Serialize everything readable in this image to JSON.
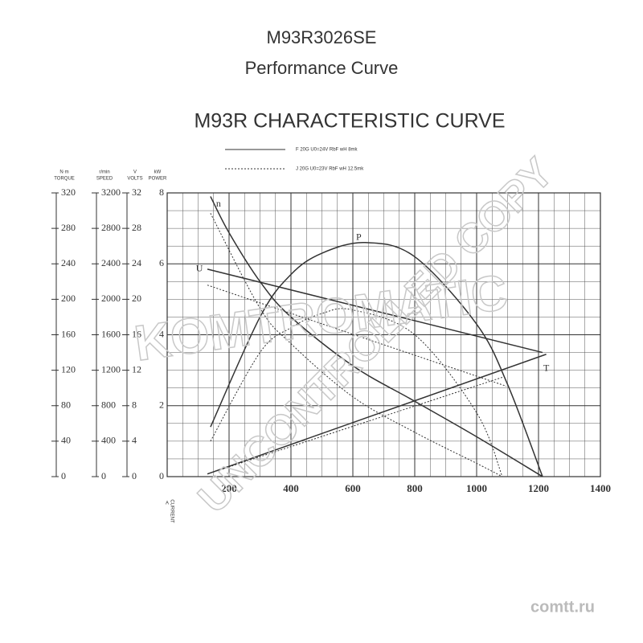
{
  "header": {
    "model": "M93R3026SE",
    "subtitle": "Performance Curve"
  },
  "chart_data": {
    "type": "line",
    "title": "M93R  CHARACTERISTIC  CURVE",
    "legend": [
      {
        "label": "F 20G      U0=24V      RbF  wH  8mk",
        "dashed": false
      },
      {
        "label": "J 20G      U0=23V      RbF  wH  12.5mk",
        "dashed": true
      }
    ],
    "x_label": "CURRENT",
    "x_unit": "A",
    "xlim": [
      0,
      1400
    ],
    "xticks": [
      200,
      400,
      600,
      800,
      1000,
      1200,
      1400
    ],
    "y_axes": [
      {
        "label": "TORQUE",
        "unit": "N·m",
        "ylim": [
          0,
          320
        ],
        "yticks": [
          0,
          40,
          80,
          120,
          160,
          200,
          240,
          280,
          320
        ]
      },
      {
        "label": "SPEED",
        "unit": "r/min",
        "ylim": [
          0,
          3200
        ],
        "yticks": [
          0,
          400,
          800,
          1200,
          1600,
          2000,
          2400,
          2800,
          3200
        ]
      },
      {
        "label": "VOLTS",
        "unit": "V",
        "ylim": [
          0,
          32
        ],
        "yticks": [
          0,
          4,
          8,
          12,
          16,
          20,
          24,
          28,
          32
        ]
      },
      {
        "label": "POWER",
        "unit": "kW",
        "ylim": [
          0,
          8
        ],
        "yticks": [
          0,
          2,
          4,
          6,
          8
        ]
      }
    ],
    "grid": true,
    "color": "#333333",
    "series": [
      {
        "label": "n",
        "legend": 0,
        "axis": 1,
        "x": [
          140,
          200,
          300,
          400,
          600,
          800,
          1000,
          1213
        ],
        "values": [
          3160,
          2750,
          2200,
          1800,
          1250,
          850,
          450,
          0
        ]
      },
      {
        "label": "P",
        "legend": 0,
        "axis": 3,
        "x": [
          140,
          300,
          400,
          500,
          640,
          800,
          1000,
          1100,
          1213
        ],
        "values": [
          1.4,
          4.5,
          5.7,
          6.3,
          6.6,
          6.2,
          4.3,
          2.6,
          0
        ]
      },
      {
        "label": "U",
        "legend": 0,
        "axis": 2,
        "x": [
          130,
          1213
        ],
        "values": [
          23.4,
          14
        ]
      },
      {
        "label": "T",
        "legend": 0,
        "axis": 0,
        "x": [
          130,
          1225
        ],
        "values": [
          3,
          138
        ]
      },
      {
        "legend": 1,
        "axis": 1,
        "x": [
          140,
          300,
          400,
          600,
          800,
          1000,
          1083
        ],
        "values": [
          2970,
          1900,
          1500,
          900,
          500,
          150,
          0
        ]
      },
      {
        "legend": 1,
        "axis": 3,
        "x": [
          140,
          300,
          400,
          500,
          600,
          800,
          1000,
          1083
        ],
        "values": [
          1.0,
          3.5,
          4.2,
          4.6,
          4.7,
          4.0,
          1.8,
          0
        ]
      },
      {
        "legend": 1,
        "axis": 2,
        "x": [
          130,
          1096
        ],
        "values": [
          21.6,
          10.2
        ]
      },
      {
        "legend": 1,
        "axis": 0,
        "x": [
          130,
          1083
        ],
        "values": [
          3,
          112
        ]
      }
    ]
  },
  "watermarks": [
    "KOMTROMATIC",
    "UNCONTROLLED COPY",
    "comtt.ru"
  ]
}
